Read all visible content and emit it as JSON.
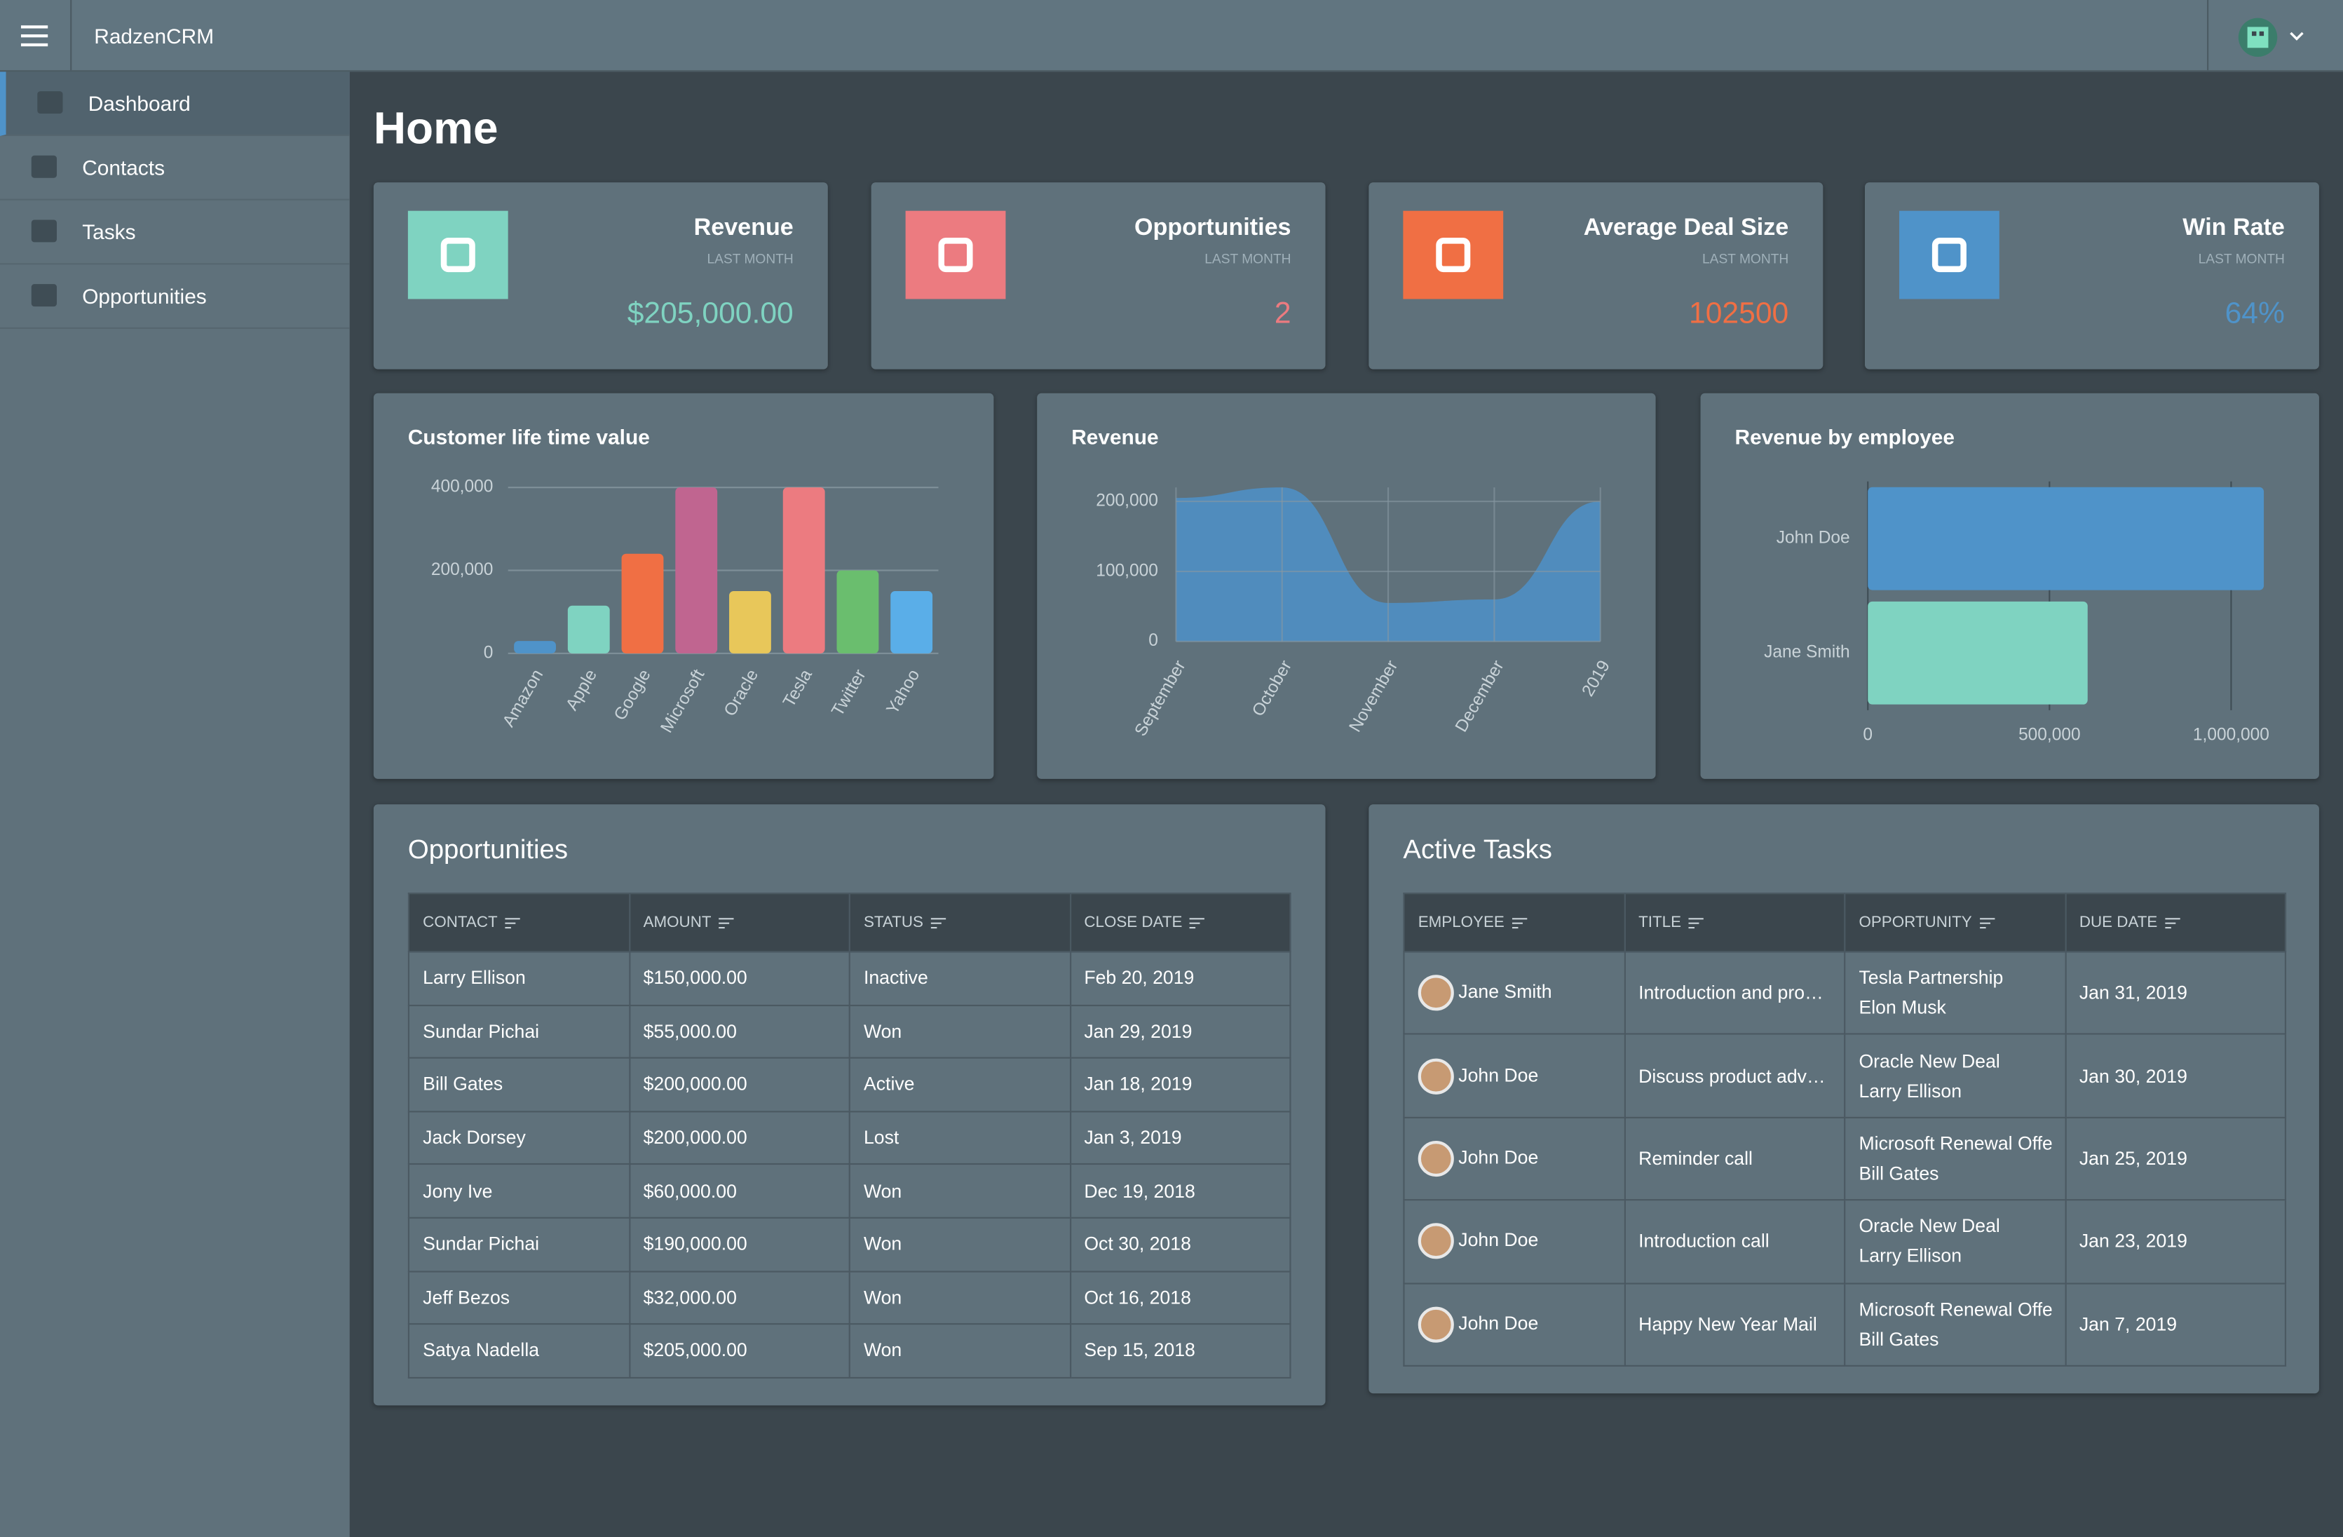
{
  "app": {
    "brand": "RadzenCRM"
  },
  "sidebar": {
    "items": [
      "Dashboard",
      "Contacts",
      "Tasks",
      "Opportunities"
    ]
  },
  "page_title": "Home",
  "stats": [
    {
      "title": "Revenue",
      "subtitle": "LAST MONTH",
      "value": "$205,000.00",
      "color": "#7fd3c1"
    },
    {
      "title": "Opportunities",
      "subtitle": "LAST MONTH",
      "value": "2",
      "color": "#ec7b80"
    },
    {
      "title": "Average Deal Size",
      "subtitle": "LAST MONTH",
      "value": "102500",
      "color": "#f06f44"
    },
    {
      "title": "Win Rate",
      "subtitle": "LAST MONTH",
      "value": "64%",
      "color": "#4f93c9"
    }
  ],
  "chart_data": [
    {
      "type": "bar",
      "title": "Customer life time value",
      "categories": [
        "Amazon",
        "Apple",
        "Google",
        "Microsoft",
        "Oracle",
        "Tesla",
        "Twitter",
        "Yahoo"
      ],
      "values": [
        30000,
        115000,
        240000,
        400000,
        150000,
        400000,
        200000,
        150000
      ],
      "colors": [
        "#4f93c9",
        "#7fd3c1",
        "#f06f44",
        "#c06590",
        "#e8c75a",
        "#ec7b80",
        "#6abe6e",
        "#5aaee8"
      ],
      "ylim": [
        0,
        400000
      ],
      "yticks": [
        0,
        {
          "value": 200000,
          "label": "200,000"
        },
        {
          "value": 400000,
          "label": "400,000"
        }
      ],
      "grid": true
    },
    {
      "type": "area",
      "title": "Revenue",
      "categories": [
        "September",
        "October",
        "November",
        "December",
        "2019"
      ],
      "values": [
        205000,
        220000,
        55000,
        60000,
        200000
      ],
      "color": "#4f8fc4",
      "ylim": [
        0,
        220000
      ],
      "yticks": [
        0,
        {
          "value": 100000,
          "label": "100,000"
        },
        {
          "value": 200000,
          "label": "200,000"
        }
      ],
      "grid": true
    },
    {
      "type": "hbar",
      "title": "Revenue by employee",
      "categories": [
        "John Doe",
        "Jane Smith"
      ],
      "values": [
        1090000,
        605000
      ],
      "colors": [
        "#4f93c9",
        "#7fd3c1"
      ],
      "xlim": [
        0,
        1090000
      ],
      "xticks": [
        0,
        {
          "value": 500000,
          "label": "500,000"
        },
        {
          "value": 1000000,
          "label": "1,000,000"
        }
      ],
      "grid": true
    }
  ],
  "opportunities": {
    "title": "Opportunities",
    "columns": [
      "CONTACT",
      "AMOUNT",
      "STATUS",
      "CLOSE DATE"
    ],
    "rows": [
      [
        "Larry Ellison",
        "$150,000.00",
        "Inactive",
        "Feb 20, 2019"
      ],
      [
        "Sundar Pichai",
        "$55,000.00",
        "Won",
        "Jan 29, 2019"
      ],
      [
        "Bill Gates",
        "$200,000.00",
        "Active",
        "Jan 18, 2019"
      ],
      [
        "Jack Dorsey",
        "$200,000.00",
        "Lost",
        "Jan 3, 2019"
      ],
      [
        "Jony Ive",
        "$60,000.00",
        "Won",
        "Dec 19, 2018"
      ],
      [
        "Sundar Pichai",
        "$190,000.00",
        "Won",
        "Oct 30, 2018"
      ],
      [
        "Jeff Bezos",
        "$32,000.00",
        "Won",
        "Oct 16, 2018"
      ],
      [
        "Satya Nadella",
        "$205,000.00",
        "Won",
        "Sep 15, 2018"
      ]
    ]
  },
  "tasks": {
    "title": "Active Tasks",
    "columns": [
      "EMPLOYEE",
      "TITLE",
      "OPPORTUNITY",
      "DUE DATE"
    ],
    "rows": [
      [
        "Jane Smith",
        "Introduction and pro…",
        "Tesla Partnership",
        "Elon Musk",
        "Jan 31, 2019"
      ],
      [
        "John Doe",
        "Discuss product adv…",
        "Oracle New Deal",
        "Larry Ellison",
        "Jan 30, 2019"
      ],
      [
        "John Doe",
        "Reminder call",
        "Microsoft Renewal Offer",
        "Bill Gates",
        "Jan 25, 2019"
      ],
      [
        "John Doe",
        "Introduction call",
        "Oracle New Deal",
        "Larry Ellison",
        "Jan 23, 2019"
      ],
      [
        "John Doe",
        "Happy New Year Mail",
        "Microsoft Renewal Offer",
        "Bill Gates",
        "Jan 7, 2019"
      ]
    ]
  }
}
